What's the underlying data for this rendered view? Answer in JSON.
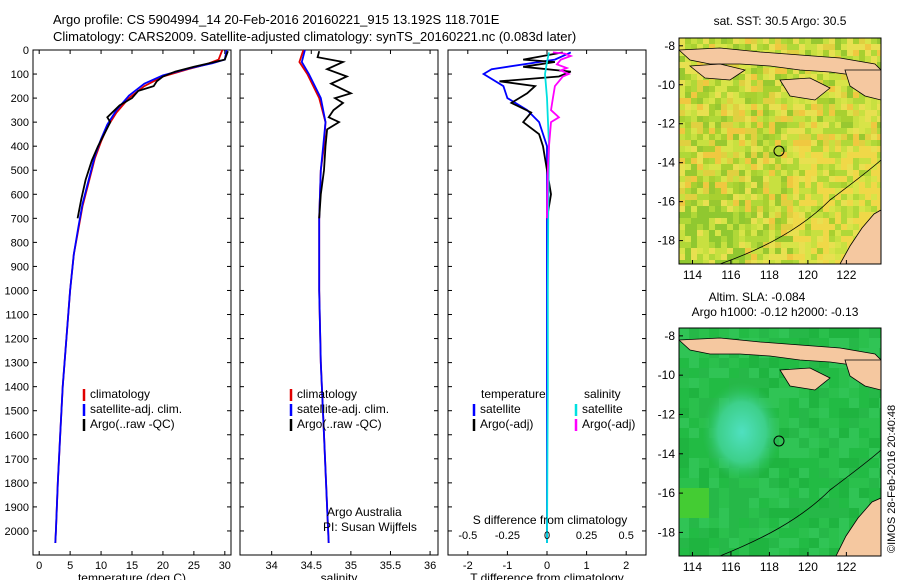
{
  "header": {
    "line1": "Argo profile: CS 5904994_14 20-Feb-2016 20160221_915 13.192S 118.701E",
    "line2": "Climatology: CARS2009. Satellite-adjusted climatology: synTS_20160221.nc (0.083d later)"
  },
  "colors": {
    "climatology": "#e00000",
    "satellite": "#0000ff",
    "argo": "#000000",
    "sal_satellite": "#00e0e0",
    "sal_argo": "#ff00ff",
    "land": "#f5c8a0",
    "sla_bg": "#22bb44"
  },
  "chart_data": [
    {
      "type": "line",
      "name": "temperature-profile",
      "xlabel": "temperature (deg C)",
      "ylabel": "",
      "xlim": [
        -1,
        31
      ],
      "ylim": [
        2100,
        0
      ],
      "xticks": [
        0,
        5,
        10,
        15,
        20,
        25,
        30
      ],
      "yticks": [
        0,
        100,
        200,
        300,
        400,
        500,
        600,
        700,
        800,
        900,
        1000,
        1100,
        1200,
        1300,
        1400,
        1500,
        1600,
        1700,
        1800,
        1900,
        2000
      ],
      "legend": [
        "climatology",
        "satellite-adj. clim.",
        "Argo(..raw -QC)"
      ],
      "series": [
        {
          "name": "climatology",
          "color": "#e00000",
          "points": [
            [
              29.6,
              0
            ],
            [
              29.0,
              40
            ],
            [
              27,
              60
            ],
            [
              24,
              80
            ],
            [
              20,
              110
            ],
            [
              17,
              150
            ],
            [
              14.5,
              200
            ],
            [
              12.5,
              260
            ],
            [
              11,
              320
            ],
            [
              10,
              380
            ],
            [
              9,
              450
            ],
            [
              8,
              550
            ],
            [
              7,
              650
            ],
            [
              6.3,
              750
            ],
            [
              5.6,
              850
            ],
            [
              5,
              1000
            ],
            [
              4.4,
              1200
            ],
            [
              3.8,
              1400
            ],
            [
              3.4,
              1600
            ],
            [
              3.0,
              1800
            ],
            [
              2.7,
              2000
            ],
            [
              2.6,
              2050
            ]
          ]
        },
        {
          "name": "satellite-adj. clim.",
          "color": "#0000ff",
          "points": [
            [
              30.3,
              0
            ],
            [
              30,
              40
            ],
            [
              28,
              55
            ],
            [
              24.5,
              75
            ],
            [
              20,
              105
            ],
            [
              17,
              140
            ],
            [
              14.5,
              190
            ],
            [
              12.5,
              250
            ],
            [
              11,
              310
            ],
            [
              10,
              370
            ],
            [
              9,
              440
            ],
            [
              8,
              540
            ],
            [
              7,
              640
            ],
            [
              6.3,
              740
            ],
            [
              5.6,
              850
            ],
            [
              5,
              1000
            ],
            [
              4.4,
              1200
            ],
            [
              3.8,
              1400
            ],
            [
              3.4,
              1600
            ],
            [
              3.0,
              1800
            ],
            [
              2.7,
              2000
            ],
            [
              2.6,
              2050
            ]
          ]
        },
        {
          "name": "Argo(..raw -QC)",
          "color": "#000000",
          "points": [
            [
              30.5,
              5
            ],
            [
              30,
              40
            ],
            [
              27.5,
              55
            ],
            [
              25,
              70
            ],
            [
              22,
              90
            ],
            [
              20,
              110
            ],
            [
              19,
              130
            ],
            [
              18.5,
              150
            ],
            [
              16,
              170
            ],
            [
              15,
              200
            ],
            [
              13,
              230
            ],
            [
              11,
              280
            ],
            [
              11.5,
              300
            ],
            [
              10.5,
              350
            ],
            [
              9.5,
              400
            ],
            [
              8.5,
              460
            ],
            [
              7.5,
              540
            ],
            [
              6.8,
              620
            ],
            [
              6.2,
              700
            ]
          ]
        }
      ]
    },
    {
      "type": "line",
      "name": "salinity-profile",
      "xlabel": "salinity",
      "xlim": [
        33.6,
        36.1
      ],
      "ylim": [
        2100,
        0
      ],
      "xticks": [
        34,
        34.5,
        35,
        35.5,
        36
      ],
      "legend": [
        "climatology",
        "satellite-adj. clim.",
        "Argo(..raw -QC)"
      ],
      "annotation": [
        "Argo Australia",
        "PI: Susan Wijffels"
      ],
      "series": [
        {
          "name": "climatology",
          "color": "#e00000",
          "points": [
            [
              34.4,
              0
            ],
            [
              34.35,
              50
            ],
            [
              34.45,
              100
            ],
            [
              34.6,
              200
            ],
            [
              34.68,
              300
            ],
            [
              34.66,
              400
            ],
            [
              34.62,
              500
            ],
            [
              34.6,
              700
            ],
            [
              34.6,
              1000
            ],
            [
              34.62,
              1300
            ],
            [
              34.66,
              1600
            ],
            [
              34.7,
              1900
            ],
            [
              34.72,
              2050
            ]
          ]
        },
        {
          "name": "satellite-adj. clim.",
          "color": "#0000ff",
          "points": [
            [
              34.42,
              0
            ],
            [
              34.38,
              50
            ],
            [
              34.47,
              100
            ],
            [
              34.62,
              200
            ],
            [
              34.68,
              300
            ],
            [
              34.65,
              400
            ],
            [
              34.62,
              500
            ],
            [
              34.6,
              700
            ],
            [
              34.6,
              1000
            ],
            [
              34.62,
              1300
            ],
            [
              34.66,
              1600
            ],
            [
              34.7,
              1900
            ],
            [
              34.72,
              2050
            ]
          ]
        },
        {
          "name": "Argo(..raw -QC)",
          "color": "#000000",
          "points": [
            [
              34.6,
              5
            ],
            [
              34.58,
              30
            ],
            [
              34.9,
              50
            ],
            [
              34.7,
              80
            ],
            [
              34.95,
              110
            ],
            [
              34.75,
              140
            ],
            [
              35.0,
              180
            ],
            [
              34.8,
              200
            ],
            [
              34.9,
              220
            ],
            [
              34.78,
              250
            ],
            [
              34.72,
              280
            ],
            [
              34.85,
              300
            ],
            [
              34.7,
              330
            ],
            [
              34.68,
              400
            ],
            [
              34.66,
              500
            ],
            [
              34.62,
              600
            ],
            [
              34.6,
              700
            ]
          ]
        }
      ]
    },
    {
      "type": "line",
      "name": "difference-profile",
      "xlabel": "T difference from climatology",
      "xlabel2": "S difference from climatology",
      "xlim": [
        -2.5,
        2.5
      ],
      "ylim": [
        2100,
        0
      ],
      "xticks": [
        -2,
        -1,
        0,
        1,
        2
      ],
      "xticks_top": [
        -0.5,
        -0.25,
        0,
        0.25,
        0.5
      ],
      "legend_temperature": [
        "temperature",
        "satellite",
        "Argo(-adj)"
      ],
      "legend_salinity": [
        "salinity",
        "satellite",
        "Argo(-adj)"
      ],
      "series": [
        {
          "name": "T satellite",
          "color": "#0000ff",
          "points": [
            [
              0.6,
              10
            ],
            [
              0.2,
              40
            ],
            [
              -1.4,
              80
            ],
            [
              -1.6,
              100
            ],
            [
              -1.1,
              150
            ],
            [
              -1.0,
              200
            ],
            [
              -0.5,
              250
            ],
            [
              -0.2,
              300
            ],
            [
              0,
              400
            ],
            [
              0,
              1000
            ],
            [
              0,
              2050
            ]
          ]
        },
        {
          "name": "T Argo(-adj)",
          "color": "#000000",
          "points": [
            [
              0.4,
              10
            ],
            [
              -0.6,
              40
            ],
            [
              0.2,
              50
            ],
            [
              -0.6,
              70
            ],
            [
              0.6,
              90
            ],
            [
              0.3,
              110
            ],
            [
              -1.2,
              130
            ],
            [
              -0.3,
              150
            ],
            [
              -0.5,
              180
            ],
            [
              -0.9,
              220
            ],
            [
              -0.4,
              260
            ],
            [
              -0.6,
              300
            ],
            [
              -0.2,
              350
            ],
            [
              -0.1,
              400
            ],
            [
              0,
              500
            ],
            [
              0.1,
              600
            ],
            [
              0,
              700
            ]
          ]
        },
        {
          "name": "S satellite",
          "color": "#00e0e0",
          "points": [
            [
              0.05,
              10
            ],
            [
              0.0,
              50
            ],
            [
              -0.05,
              100
            ],
            [
              0.0,
              200
            ],
            [
              0.05,
              400
            ],
            [
              0.03,
              700
            ],
            [
              0.02,
              1000
            ],
            [
              0.02,
              1400
            ],
            [
              0.0,
              2050
            ]
          ]
        },
        {
          "name": "S Argo(-adj)",
          "color": "#ff00ff",
          "points": [
            [
              0.15,
              10
            ],
            [
              0.45,
              15
            ],
            [
              0.6,
              25
            ],
            [
              0.35,
              40
            ],
            [
              0.25,
              60
            ],
            [
              0.5,
              75
            ],
            [
              0.35,
              85
            ],
            [
              0.55,
              100
            ],
            [
              0.4,
              110
            ],
            [
              0.3,
              130
            ],
            [
              0.2,
              150
            ],
            [
              0.15,
              200
            ],
            [
              0.1,
              250
            ],
            [
              0.3,
              280
            ],
            [
              0.1,
              300
            ],
            [
              0.05,
              400
            ],
            [
              0.02,
              500
            ],
            [
              0.0,
              700
            ]
          ]
        }
      ]
    },
    {
      "type": "heatmap",
      "name": "sst-map",
      "title": "sat. SST: 30.5 Argo: 30.5",
      "xlim": [
        113.3,
        123.8
      ],
      "ylim": [
        -19.2,
        -7.6
      ],
      "xticks": [
        114,
        116,
        118,
        120,
        122
      ],
      "yticks": [
        -8,
        -10,
        -12,
        -14,
        -16,
        -18
      ],
      "profile_location": [
        118.701,
        -13.192
      ]
    },
    {
      "type": "heatmap",
      "name": "sla-map",
      "title": "Altim. SLA: -0.084",
      "subtitle": "Argo h1000: -0.12 h2000: -0.13",
      "xlim": [
        113.3,
        123.8
      ],
      "ylim": [
        -19.2,
        -7.6
      ],
      "xticks": [
        114,
        116,
        118,
        120,
        122
      ],
      "yticks": [
        -8,
        -10,
        -12,
        -14,
        -16,
        -18
      ],
      "profile_location": [
        118.701,
        -13.192
      ]
    }
  ],
  "footer": {
    "credit": "©IMOS 28-Feb-2016 20:40:48"
  }
}
